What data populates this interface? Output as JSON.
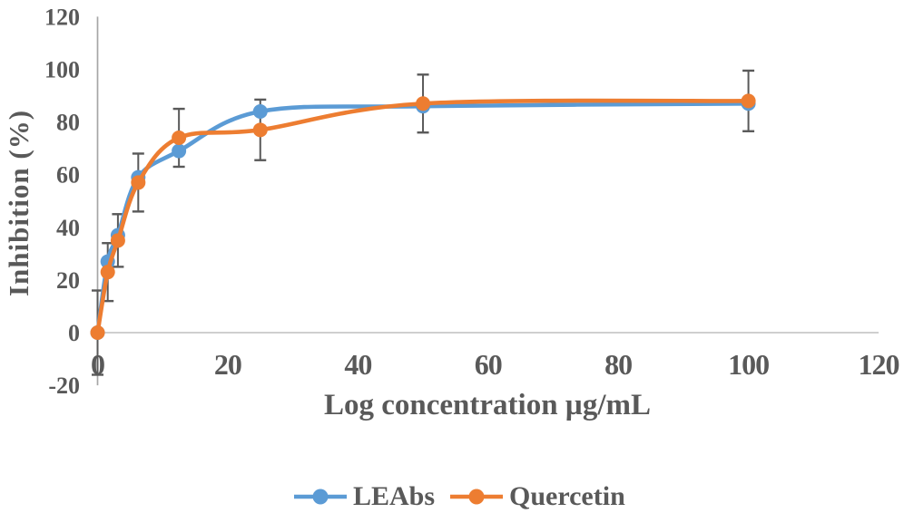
{
  "chart_data": {
    "type": "line",
    "title": "",
    "xlabel": "Log concentration µg/mL",
    "ylabel": "Inhibition (%)",
    "x": [
      0,
      1.5625,
      3.125,
      6.25,
      12.5,
      25,
      50,
      100
    ],
    "series": [
      {
        "name": "LEAbs",
        "color": "#5B9BD5",
        "values": [
          0,
          27,
          37,
          59,
          69,
          84,
          86,
          87
        ]
      },
      {
        "name": "Quercetin",
        "color": "#ED7D31",
        "values": [
          0,
          23,
          35,
          57,
          74,
          77,
          87,
          88
        ],
        "error": [
          16,
          11,
          10,
          11,
          11,
          11.5,
          11,
          11.5
        ]
      }
    ],
    "xlim": [
      0,
      120
    ],
    "ylim": [
      -20,
      120
    ],
    "xticks": [
      0,
      20,
      40,
      60,
      80,
      100,
      120
    ],
    "yticks": [
      -20,
      0,
      20,
      40,
      60,
      80,
      100,
      120
    ],
    "grid": false,
    "smooth": true,
    "marker": "circle",
    "legend_position": "bottom",
    "error_bar_color": "#595959",
    "y_axis_color": "#A6A6A6",
    "x_axis_color": "#BFBFBF",
    "text_color": "#595959",
    "background": "#ffffff"
  }
}
